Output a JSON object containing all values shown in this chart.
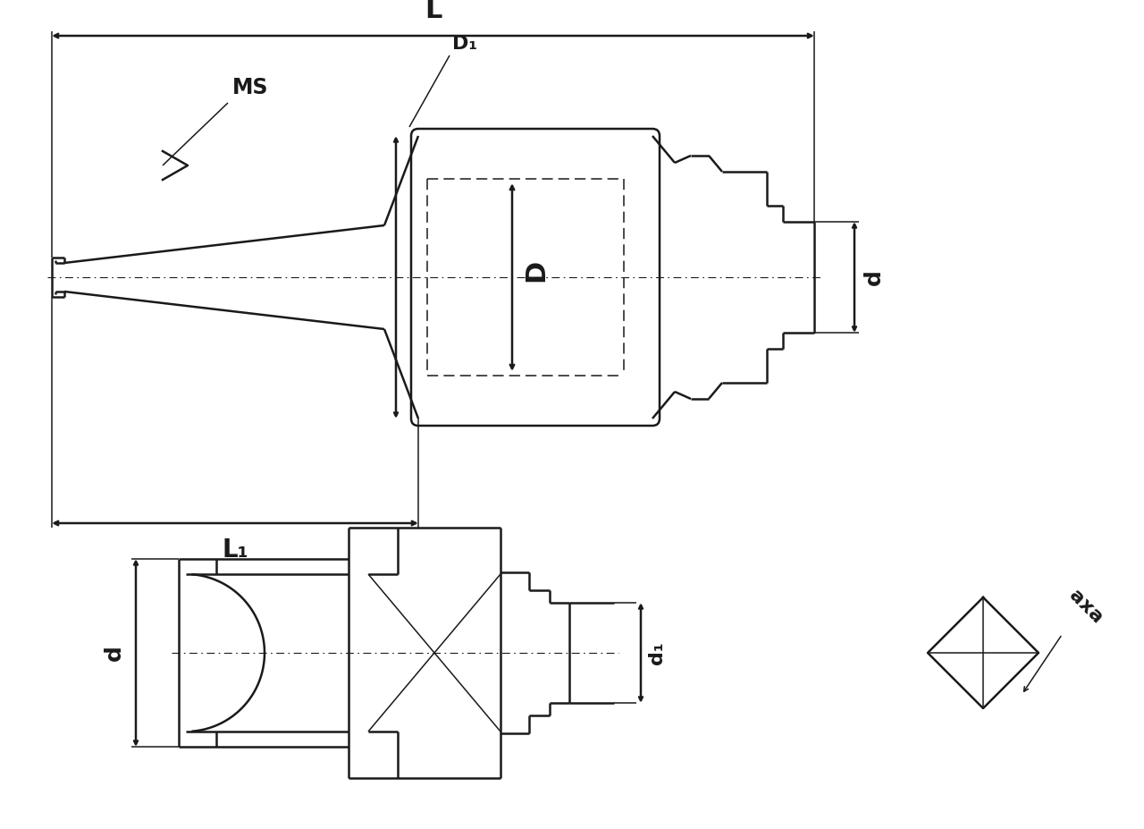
{
  "bg": "#ffffff",
  "lc": "#1a1a1a",
  "lw": 1.8,
  "tlw": 1.1,
  "labels": {
    "L": "L",
    "L1": "L₁",
    "D": "D",
    "D1": "D₁",
    "d": "d",
    "d1": "d₁",
    "MS": "MS",
    "axa": "axa"
  }
}
